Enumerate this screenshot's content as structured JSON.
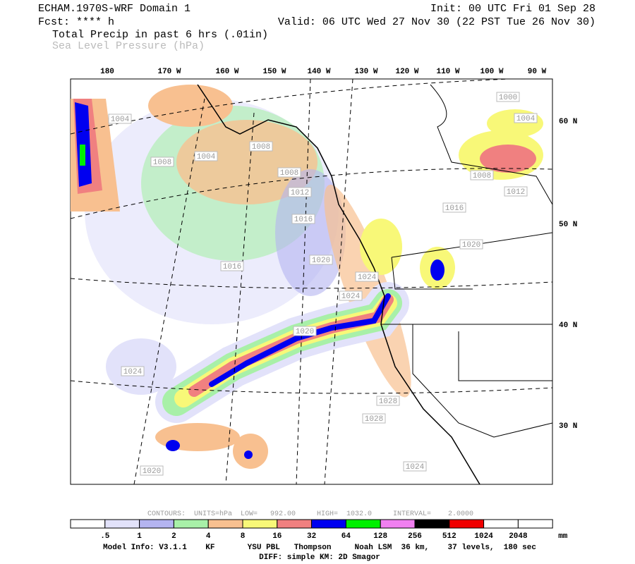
{
  "header": {
    "title": "ECHAM.1970S-WRF Domain 1",
    "init": "Init: 00 UTC Fri 01 Sep 28",
    "fcst": "Fcst: **** h",
    "valid": "Valid: 06 UTC Wed 27 Nov 30 (22 PST Tue 26 Nov 30)",
    "field1": "Total Precip in past 6 hrs (.01in)",
    "field2": "Sea Level Pressure (hPa)"
  },
  "map": {
    "lon_labels": [
      "180",
      "170 W",
      "160 W",
      "150 W",
      "140 W",
      "130 W",
      "120 W",
      "110 W",
      "100 W",
      "90 W"
    ],
    "lat_labels": [
      "60 N",
      "50 N",
      "40 N",
      "30 N"
    ],
    "contour_labels": [
      "1004",
      "1008",
      "1004",
      "1008",
      "1008",
      "1012",
      "1016",
      "1020",
      "1024",
      "1024",
      "1020",
      "1024",
      "1028",
      "1028",
      "1024",
      "1020",
      "1000",
      "1004",
      "1008",
      "1012",
      "1016",
      "1020",
      "1016"
    ]
  },
  "contour_info": "CONTOURS:  UNITS=hPa  LOW=   992.00     HIGH=  1032.0     INTERVAL=    2.0000",
  "legend": {
    "colors": [
      "#ffffff",
      "#e2e2fa",
      "#b4b4f0",
      "#a8f0a8",
      "#f8c090",
      "#f8f878",
      "#f08080",
      "#0000f0",
      "#00f000",
      "#f080f0",
      "#000000",
      "#f00000",
      "#ffffff",
      "#ffffff"
    ],
    "labels": [
      ".5",
      "1",
      "2",
      "4",
      "8",
      "16",
      "32",
      "64",
      "128",
      "256",
      "512",
      "1024",
      "2048"
    ],
    "unit": "mm"
  },
  "footer": {
    "model_info": "Model Info: V3.1.1    KF       YSU PBL   Thompson     Noah LSM  36 km,    37 levels,  180 sec",
    "diff": "DIFF: simple KM: 2D Smagor"
  }
}
